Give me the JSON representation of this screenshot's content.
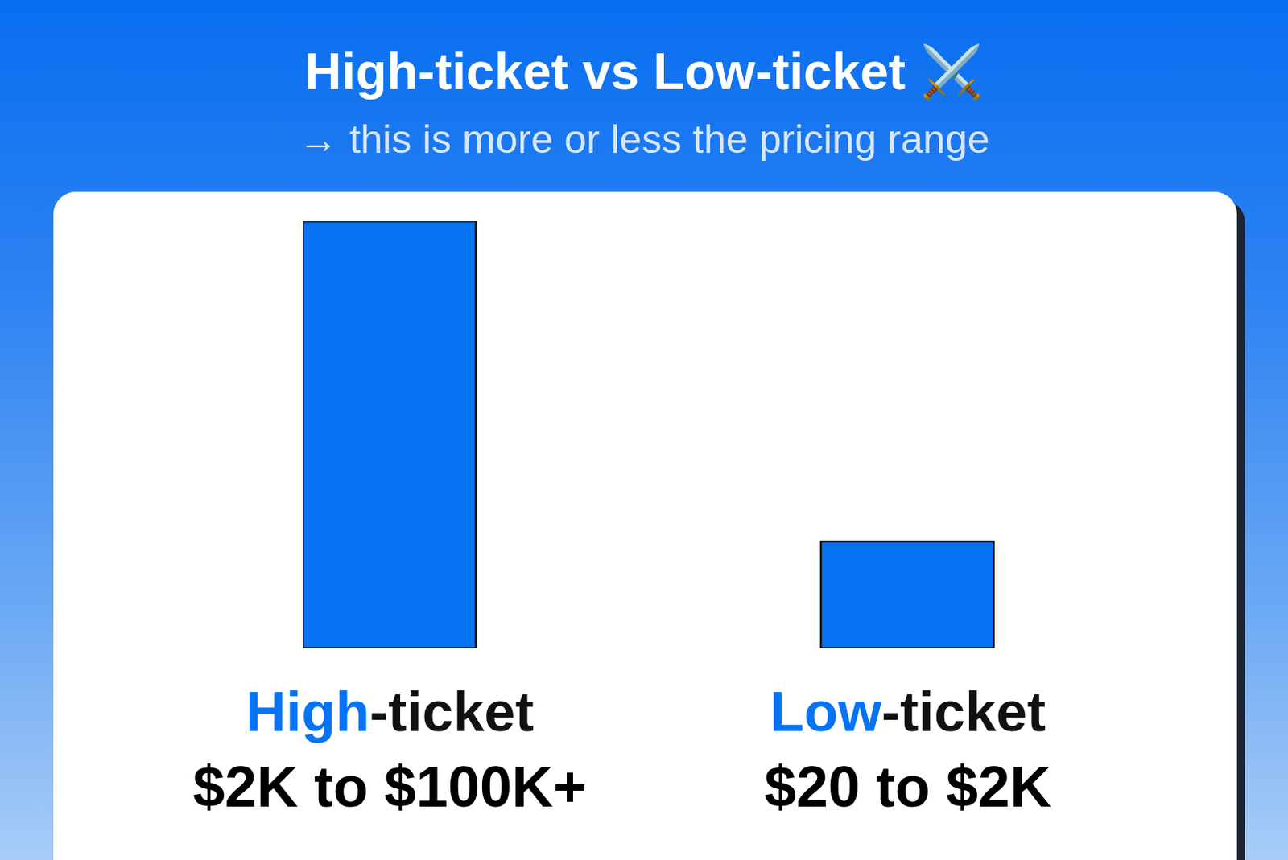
{
  "chart_data": {
    "type": "bar",
    "title": "High-ticket vs Low-ticket ⚔️",
    "subtitle": "→ this is more or less the pricing range",
    "categories": [
      "High-ticket",
      "Low-ticket"
    ],
    "values": [
      100,
      25
    ],
    "annotations": [
      "$2K to $100K+",
      "$20 to $2K"
    ],
    "color": "#0673f2",
    "tick_labels": "x",
    "grid": false
  }
}
